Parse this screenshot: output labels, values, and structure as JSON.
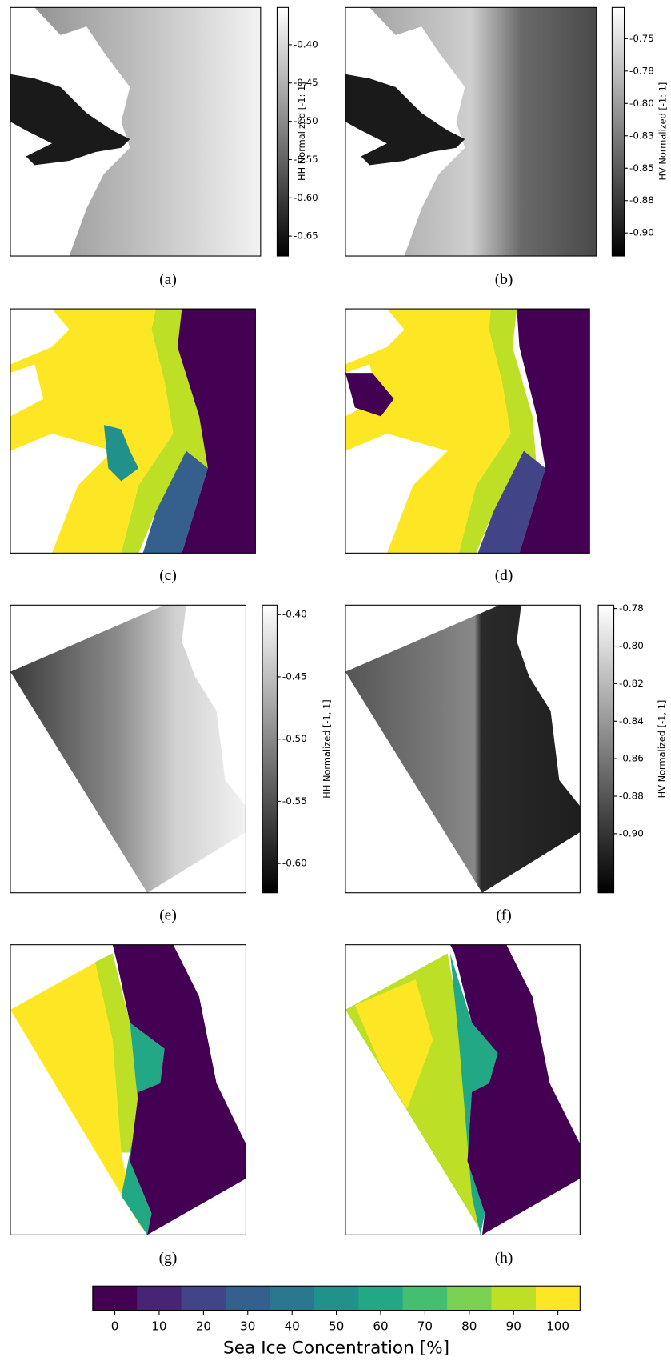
{
  "panels": [
    {
      "caption": "(a)",
      "colorbar": {
        "label": "HH Normalized [-1: 1]",
        "ticks": [
          "-0.40",
          "-0.45",
          "-0.50",
          "-0.55",
          "-0.60",
          "-0.65"
        ]
      }
    },
    {
      "caption": "(b)",
      "colorbar": {
        "label": "HV Normalized [-1: 1]",
        "ticks": [
          "-0.75",
          "-0.78",
          "-0.80",
          "-0.83",
          "-0.85",
          "-0.88",
          "-0.90"
        ]
      }
    },
    {
      "caption": "(c)"
    },
    {
      "caption": "(d)"
    },
    {
      "caption": "(e)",
      "colorbar": {
        "label": "HH Normalized [-1, 1]",
        "ticks": [
          "-0.40",
          "-0.45",
          "-0.50",
          "-0.55",
          "-0.60"
        ]
      }
    },
    {
      "caption": "(f)",
      "colorbar": {
        "label": "HV Normalized [-1, 1]",
        "ticks": [
          "-0.78",
          "-0.80",
          "-0.82",
          "-0.84",
          "-0.86",
          "-0.88",
          "-0.90"
        ]
      }
    },
    {
      "caption": "(g)"
    },
    {
      "caption": "(h)"
    }
  ],
  "colorbar": {
    "label": "Sea Ice Concentration [%]",
    "ticks": [
      0,
      10,
      20,
      30,
      40,
      50,
      60,
      70,
      80,
      90,
      100
    ]
  }
}
